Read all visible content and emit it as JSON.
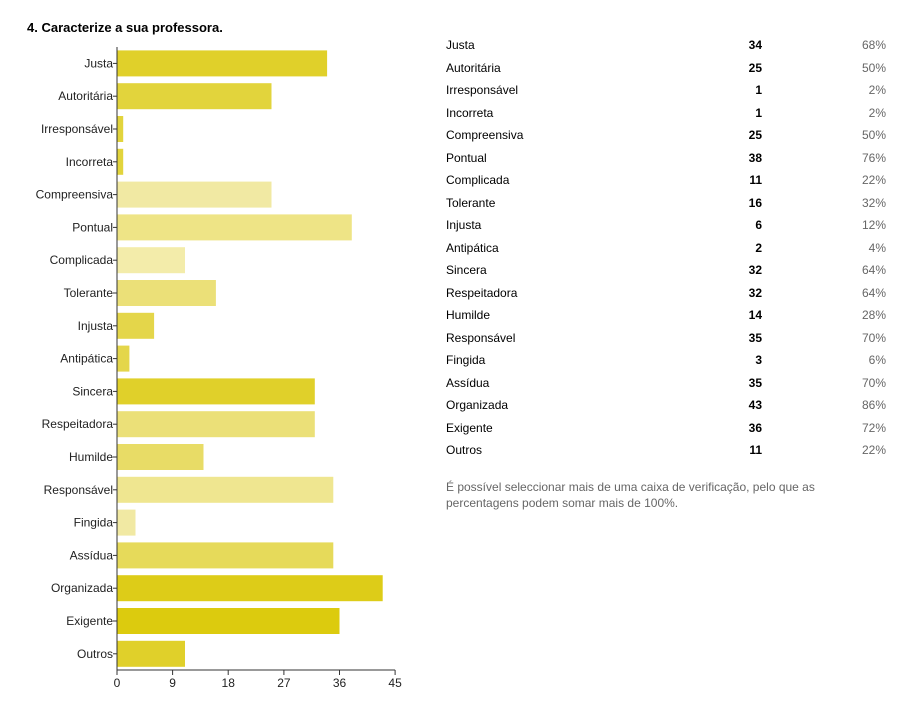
{
  "question_title": "4. Caracterize a sua professora.",
  "note": "É possível seleccionar mais de uma caixa de verificação, pelo que as percentagens podem somar mais de 100%.",
  "chart_data": {
    "type": "bar",
    "orientation": "horizontal",
    "title": "",
    "xlabel": "",
    "ylabel": "",
    "xlim": [
      0,
      45
    ],
    "ticks": [
      0,
      9,
      18,
      27,
      36,
      45
    ],
    "categories": [
      "Justa",
      "Autoritária",
      "Irresponsável",
      "Incorreta",
      "Compreensiva",
      "Pontual",
      "Complicada",
      "Tolerante",
      "Injusta",
      "Antipática",
      "Sincera",
      "Respeitadora",
      "Humilde",
      "Responsável",
      "Fingida",
      "Assídua",
      "Organizada",
      "Exigente",
      "Outros"
    ],
    "values": [
      34,
      25,
      1,
      1,
      25,
      38,
      11,
      16,
      6,
      2,
      32,
      32,
      14,
      35,
      3,
      35,
      43,
      36,
      11
    ],
    "percentages": [
      "68%",
      "50%",
      "2%",
      "2%",
      "50%",
      "76%",
      "22%",
      "32%",
      "12%",
      "4%",
      "64%",
      "64%",
      "28%",
      "70%",
      "6%",
      "70%",
      "86%",
      "72%",
      "22%"
    ],
    "bar_colors": [
      "#e0d02a",
      "#e2d43c",
      "#e2d43c",
      "#e2d43c",
      "#f1e9a3",
      "#eee486",
      "#f3ecaa",
      "#ebe078",
      "#e4d64a",
      "#e4d64a",
      "#e0d02a",
      "#ebe078",
      "#e8dc66",
      "#efe690",
      "#f1e9a3",
      "#e6da5a",
      "#ddcc18",
      "#dccb0e",
      "#e0d02a"
    ]
  }
}
